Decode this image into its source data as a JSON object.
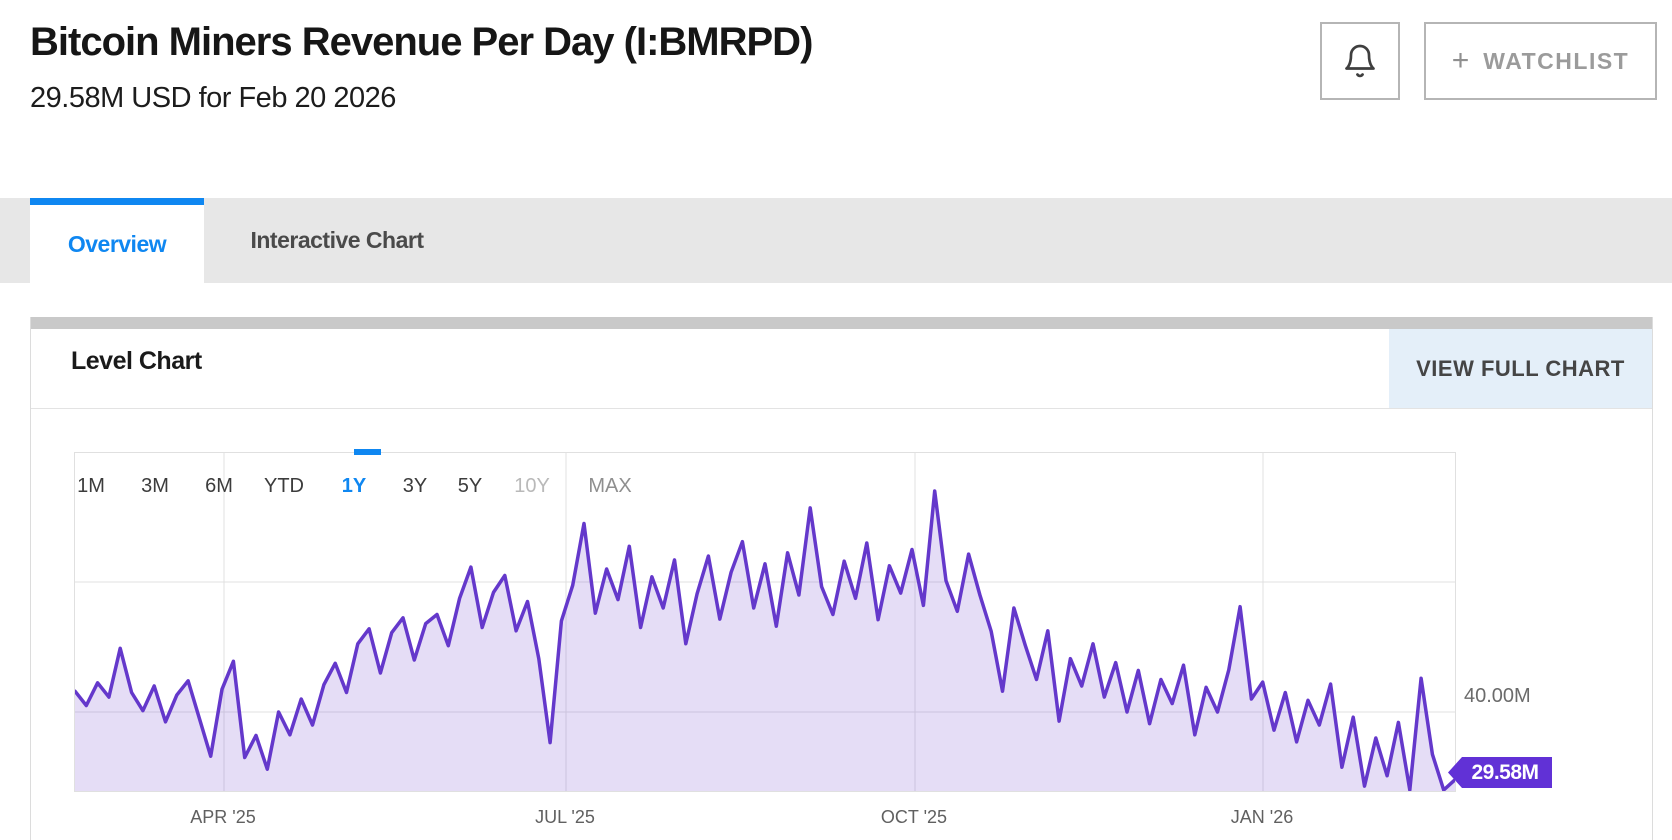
{
  "header": {
    "title": "Bitcoin Miners Revenue Per Day (I:BMRPD)",
    "subtitle": "29.58M USD for Feb 20 2026",
    "bell_icon": "bell-icon",
    "watchlist_plus": "+",
    "watchlist_label": "WATCHLIST"
  },
  "tabs": {
    "overview": "Overview",
    "interactive_chart": "Interactive Chart"
  },
  "panel": {
    "title": "Level Chart",
    "view_full_chart_label": "VIEW FULL CHART"
  },
  "ranges": [
    {
      "label": "1M",
      "state": "default"
    },
    {
      "label": "3M",
      "state": "default"
    },
    {
      "label": "6M",
      "state": "default"
    },
    {
      "label": "YTD",
      "state": "default"
    },
    {
      "label": "1Y",
      "state": "active"
    },
    {
      "label": "3Y",
      "state": "default"
    },
    {
      "label": "5Y",
      "state": "default"
    },
    {
      "label": "10Y",
      "state": "muted"
    },
    {
      "label": "MAX",
      "state": "dim"
    }
  ],
  "colors": {
    "accent_blue": "#0f87f1",
    "line_purple": "#6438cb",
    "badge_purple": "#6131d6",
    "gridline": "#e1e1e1"
  },
  "chart_data": {
    "type": "area",
    "series_name": "Bitcoin Miners Revenue Per Day",
    "unit": "million USD per day",
    "x_start": "2025-02-20",
    "x_end": "2026-02-20",
    "x_tick_labels": [
      "APR '25",
      "JUL '25",
      "OCT '25",
      "JAN '26"
    ],
    "y_gridline_values": [
      40,
      60
    ],
    "y_axis_label": "40.00M",
    "y_range_shown": [
      27.8,
      79.8
    ],
    "last_value": 29.58,
    "last_value_label": "29.58M",
    "last_date_label": "Feb 20 2026",
    "legend_position": "none",
    "grid": true,
    "values": [
      43.2,
      41.0,
      44.5,
      42.3,
      49.8,
      43.0,
      40.2,
      44.0,
      38.5,
      42.6,
      44.8,
      39.0,
      33.2,
      43.5,
      47.8,
      33.0,
      36.4,
      31.2,
      40.0,
      36.5,
      42.0,
      38.0,
      44.2,
      47.5,
      43.0,
      50.5,
      52.8,
      46.0,
      52.2,
      54.5,
      48.0,
      53.6,
      55.0,
      50.2,
      57.5,
      62.3,
      53.0,
      58.4,
      61.0,
      52.5,
      57.0,
      48.2,
      35.3,
      54.0,
      59.5,
      69.0,
      55.2,
      62.0,
      57.3,
      65.5,
      53.0,
      60.8,
      56.0,
      63.4,
      50.5,
      58.2,
      64.0,
      54.3,
      61.5,
      66.2,
      56.0,
      62.8,
      53.2,
      64.5,
      58.0,
      71.4,
      59.3,
      55.0,
      63.2,
      57.5,
      66.0,
      54.2,
      62.5,
      58.3,
      65.0,
      56.4,
      74.0,
      60.2,
      55.5,
      64.3,
      58.0,
      52.4,
      43.2,
      56.0,
      50.3,
      45.0,
      52.5,
      38.6,
      48.2,
      44.0,
      50.5,
      42.3,
      47.6,
      40.0,
      46.4,
      38.2,
      45.0,
      41.3,
      47.2,
      36.5,
      43.8,
      40.0,
      46.5,
      56.2,
      42.0,
      44.6,
      37.2,
      43.0,
      35.4,
      41.8,
      38.0,
      44.3,
      31.5,
      39.2,
      28.6,
      36.0,
      30.2,
      38.4,
      28.0,
      45.2,
      33.5,
      27.8,
      29.58
    ]
  }
}
